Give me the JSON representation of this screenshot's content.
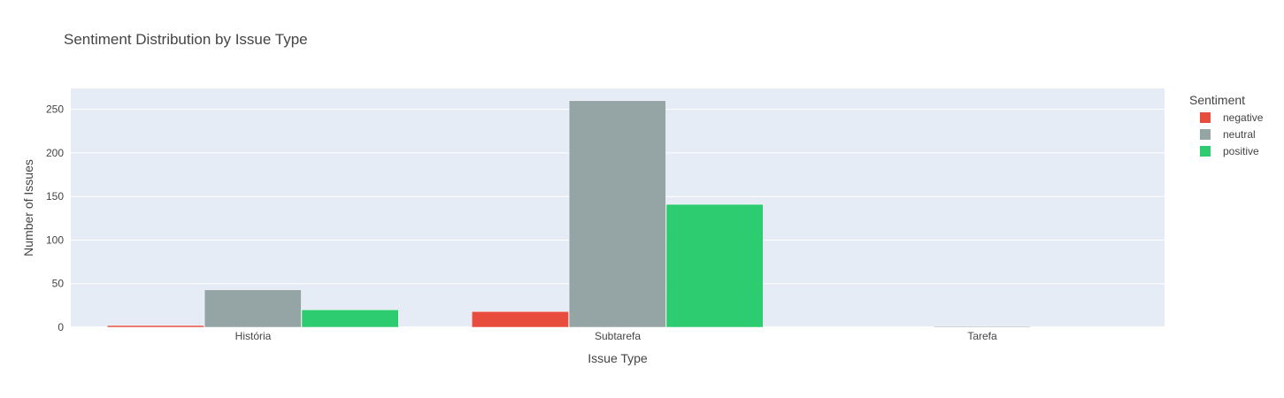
{
  "chart_data": {
    "type": "bar",
    "title": "Sentiment Distribution by Issue Type",
    "xlabel": "Issue Type",
    "ylabel": "Number of Issues",
    "categories": [
      "História",
      "Subtarefa",
      "Tarefa"
    ],
    "series": [
      {
        "name": "negative",
        "color": "#e74c3c",
        "values": [
          2,
          18,
          0
        ]
      },
      {
        "name": "neutral",
        "color": "#95a5a6",
        "values": [
          43,
          260,
          1
        ]
      },
      {
        "name": "positive",
        "color": "#2ecc71",
        "values": [
          20,
          141,
          0
        ]
      }
    ],
    "ylim": [
      0,
      274
    ],
    "yticks": [
      0,
      50,
      100,
      150,
      200,
      250
    ],
    "grid": true,
    "barmode": "group",
    "legend": {
      "title": "Sentiment",
      "position": "top-right"
    },
    "plot_background": "#e5ecf6"
  }
}
